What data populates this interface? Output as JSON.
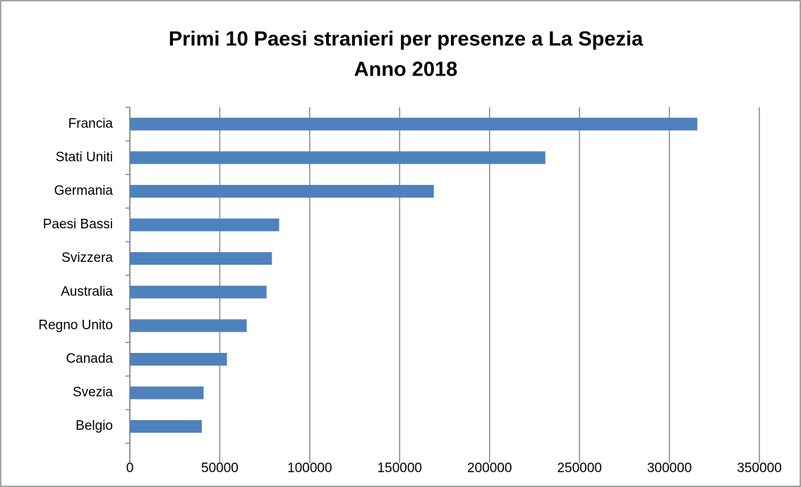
{
  "chart_data": {
    "type": "bar",
    "orientation": "horizontal",
    "title": "Primi 10 Paesi stranieri per presenze a La Spezia",
    "subtitle": "Anno 2018",
    "categories": [
      "Francia",
      "Stati Uniti",
      "Germania",
      "Paesi Bassi",
      "Svizzera",
      "Australia",
      "Regno Unito",
      "Canada",
      "Svezia",
      "Belgio"
    ],
    "values": [
      315500,
      231000,
      169000,
      83000,
      79000,
      76000,
      65000,
      54000,
      41000,
      40000
    ],
    "color": "#4f81bd",
    "xlim": [
      0,
      350000
    ],
    "xticks": [
      0,
      50000,
      100000,
      150000,
      200000,
      250000,
      300000,
      350000
    ],
    "grid": true
  }
}
